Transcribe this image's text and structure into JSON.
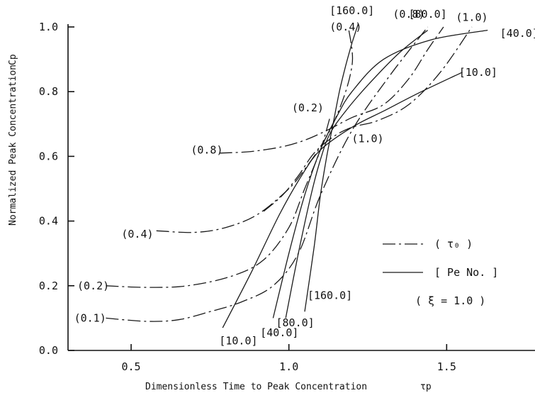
{
  "chart_data": {
    "type": "line",
    "title": "",
    "xlabel": "Dimensionless Time to Peak Concentration",
    "xlabel_symbol": "τp",
    "ylabel": "Normalized Peak Concentration",
    "ylabel_symbol": "Cp",
    "xlim": [
      0.3,
      1.78
    ],
    "ylim": [
      0.0,
      1.0
    ],
    "xticks": [
      {
        "value": 0.5,
        "label": "0.5"
      },
      {
        "value": 1.0,
        "label": "1.0"
      },
      {
        "value": 1.5,
        "label": "1.5"
      }
    ],
    "yticks": [
      {
        "value": 0.0,
        "label": "0.0"
      },
      {
        "value": 0.2,
        "label": "0.2"
      },
      {
        "value": 0.4,
        "label": "0.4"
      },
      {
        "value": 0.6,
        "label": "0.6"
      },
      {
        "value": 0.8,
        "label": "0.8"
      },
      {
        "value": 1.0,
        "label": "1.0"
      }
    ],
    "grid": false,
    "legend": {
      "placement": "right",
      "entries": [
        {
          "style": "dash-dot",
          "label": "( τ₀ )"
        },
        {
          "style": "solid",
          "label": "[ Pe No. ]"
        }
      ],
      "note": "( ξ = 1.0 )"
    },
    "series": [
      {
        "name": "[10.0]",
        "style": "solid",
        "x": [
          0.79,
          0.88,
          0.97,
          1.04,
          1.1,
          1.2,
          1.3,
          1.42,
          1.55
        ],
        "y": [
          0.07,
          0.24,
          0.42,
          0.54,
          0.62,
          0.69,
          0.74,
          0.8,
          0.86
        ]
      },
      {
        "name": "[40.0]",
        "style": "solid",
        "x": [
          0.95,
          1.0,
          1.05,
          1.1,
          1.15,
          1.2,
          1.3,
          1.45,
          1.63
        ],
        "y": [
          0.1,
          0.3,
          0.48,
          0.62,
          0.72,
          0.8,
          0.9,
          0.96,
          0.99
        ]
      },
      {
        "name": "[80.0]",
        "style": "solid",
        "x": [
          0.99,
          1.03,
          1.07,
          1.1,
          1.13,
          1.18,
          1.25,
          1.35,
          1.44
        ],
        "y": [
          0.1,
          0.3,
          0.48,
          0.59,
          0.67,
          0.74,
          0.82,
          0.92,
          0.99
        ]
      },
      {
        "name": "[160.0]",
        "style": "solid",
        "x": [
          1.05,
          1.08,
          1.1,
          1.12,
          1.14,
          1.16,
          1.18,
          1.2,
          1.22
        ],
        "y": [
          0.12,
          0.32,
          0.48,
          0.6,
          0.7,
          0.8,
          0.88,
          0.95,
          1.01
        ]
      },
      {
        "name": "(0.1)",
        "style": "dash-dot",
        "x": [
          0.42,
          0.55,
          0.65,
          0.75,
          0.85,
          0.95,
          1.03,
          1.1,
          1.2,
          1.32,
          1.44
        ],
        "y": [
          0.1,
          0.09,
          0.095,
          0.12,
          0.15,
          0.2,
          0.3,
          0.48,
          0.68,
          0.85,
          1.0
        ]
      },
      {
        "name": "(0.2)",
        "style": "dash-dot",
        "x": [
          0.42,
          0.55,
          0.68,
          0.82,
          0.92,
          1.0,
          1.05,
          1.1,
          1.13
        ],
        "y": [
          0.2,
          0.195,
          0.2,
          0.23,
          0.28,
          0.38,
          0.5,
          0.62,
          0.72
        ]
      },
      {
        "name": "(0.4)",
        "style": "dash-dot",
        "x": [
          0.58,
          0.7,
          0.8,
          0.9,
          1.0,
          1.05,
          1.1,
          1.14,
          1.18,
          1.2,
          1.2,
          1.19
        ],
        "y": [
          0.37,
          0.365,
          0.38,
          0.42,
          0.5,
          0.56,
          0.63,
          0.7,
          0.8,
          0.88,
          0.93,
          0.99
        ]
      },
      {
        "name": "(0.8)",
        "style": "dash-dot",
        "x": [
          0.78,
          0.88,
          0.98,
          1.05,
          1.12,
          1.2,
          1.3,
          1.38,
          1.44,
          1.49
        ],
        "y": [
          0.61,
          0.615,
          0.63,
          0.65,
          0.68,
          0.72,
          0.76,
          0.84,
          0.93,
          1.0
        ]
      },
      {
        "name": "(1.0)",
        "style": "dash-dot",
        "x": [
          0.92,
          0.98,
          1.03,
          1.08,
          1.14,
          1.2,
          1.28,
          1.38,
          1.48,
          1.58
        ],
        "y": [
          0.43,
          0.48,
          0.54,
          0.61,
          0.66,
          0.69,
          0.71,
          0.76,
          0.86,
          1.0
        ]
      }
    ],
    "curve_labels": [
      {
        "text": "[10.0]",
        "x": 0.84,
        "y": 0.03
      },
      {
        "text": "[40.0]",
        "x": 0.97,
        "y": 0.055
      },
      {
        "text": "[80.0]",
        "x": 1.02,
        "y": 0.085
      },
      {
        "text": "[160.0]",
        "x": 1.13,
        "y": 0.17
      },
      {
        "text": "[160.0]",
        "x": 1.2,
        "y": 1.05
      },
      {
        "text": "[80.0]",
        "x": 1.44,
        "y": 1.04
      },
      {
        "text": "[40.0]",
        "x": 1.73,
        "y": 0.98
      },
      {
        "text": "[10.0]",
        "x": 1.6,
        "y": 0.86
      },
      {
        "text": "(0.8)",
        "x": 1.38,
        "y": 1.04
      },
      {
        "text": "(1.0)",
        "x": 1.58,
        "y": 1.03
      },
      {
        "text": "(0.4)",
        "x": 1.18,
        "y": 1.0
      },
      {
        "text": "(0.2)",
        "x": 1.06,
        "y": 0.75
      },
      {
        "text": "(0.8)",
        "x": 0.74,
        "y": 0.62
      },
      {
        "text": "(1.0)",
        "x": 1.25,
        "y": 0.655
      },
      {
        "text": "(0.4)",
        "x": 0.52,
        "y": 0.36
      },
      {
        "text": "(0.2)",
        "x": 0.38,
        "y": 0.2
      },
      {
        "text": "(0.1)",
        "x": 0.37,
        "y": 0.1
      }
    ]
  }
}
